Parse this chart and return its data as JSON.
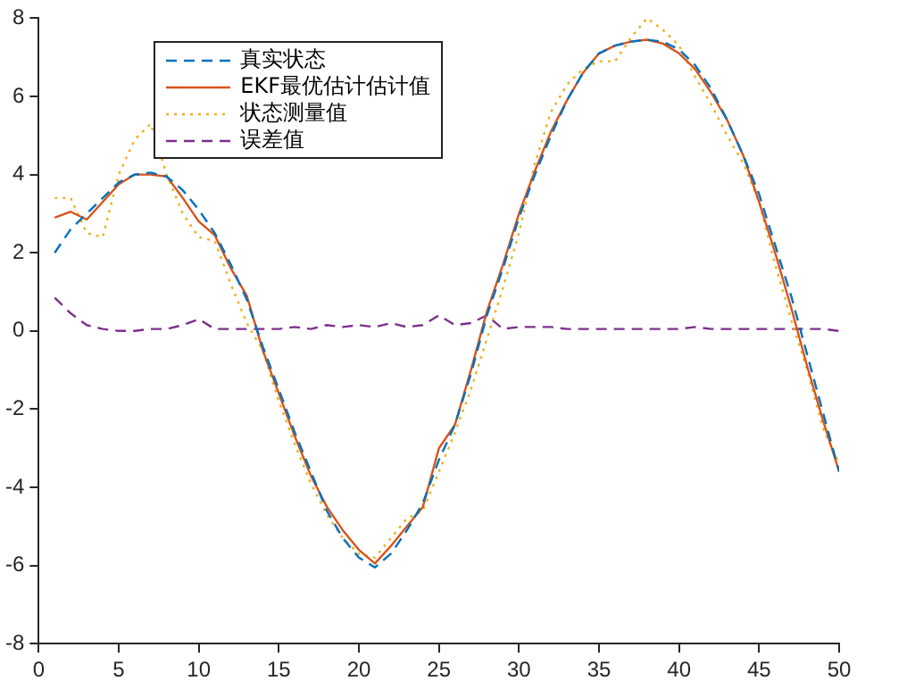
{
  "chart_data": {
    "type": "line",
    "x": [
      1,
      2,
      3,
      4,
      5,
      6,
      7,
      8,
      9,
      10,
      11,
      12,
      13,
      14,
      15,
      16,
      17,
      18,
      19,
      20,
      21,
      22,
      23,
      24,
      25,
      26,
      27,
      28,
      29,
      30,
      31,
      32,
      33,
      34,
      35,
      36,
      37,
      38,
      39,
      40,
      41,
      42,
      43,
      44,
      45,
      46,
      47,
      48,
      49,
      50
    ],
    "xlim": [
      0,
      50
    ],
    "xticks": [
      0,
      5,
      10,
      15,
      20,
      25,
      30,
      35,
      40,
      45,
      50
    ],
    "ylim": [
      -8,
      8
    ],
    "yticks": [
      -8,
      -6,
      -4,
      -2,
      0,
      2,
      4,
      6,
      8
    ],
    "grid": false,
    "legend": "top left",
    "marker": "none",
    "series": [
      {
        "name": "真实状态",
        "color": "#0072bd",
        "line_style": "dashed",
        "values": [
          2.0,
          2.6,
          3.0,
          3.4,
          3.8,
          4.0,
          4.05,
          3.95,
          3.6,
          3.1,
          2.5,
          1.7,
          0.8,
          -0.4,
          -1.5,
          -2.6,
          -3.6,
          -4.6,
          -5.3,
          -5.8,
          -6.05,
          -5.7,
          -5.1,
          -4.4,
          -3.3,
          -2.4,
          -1.1,
          0.4,
          1.6,
          2.9,
          4.0,
          5.0,
          5.9,
          6.6,
          7.1,
          7.3,
          7.4,
          7.45,
          7.4,
          7.2,
          6.8,
          6.2,
          5.4,
          4.5,
          3.5,
          2.2,
          0.9,
          -0.6,
          -2.1,
          -3.6
        ]
      },
      {
        "name": "EKF最优估计估计值",
        "color": "#d95319",
        "line_style": "solid",
        "values": [
          2.9,
          3.05,
          2.85,
          3.3,
          3.75,
          4.0,
          4.0,
          3.95,
          3.4,
          2.8,
          2.45,
          1.6,
          0.9,
          -0.5,
          -1.6,
          -2.7,
          -3.7,
          -4.5,
          -5.1,
          -5.6,
          -5.95,
          -5.5,
          -5.0,
          -4.5,
          -3.0,
          -2.4,
          -1.0,
          0.5,
          1.7,
          3.0,
          4.1,
          5.1,
          5.9,
          6.6,
          7.1,
          7.3,
          7.4,
          7.45,
          7.35,
          7.1,
          6.7,
          6.1,
          5.4,
          4.5,
          3.3,
          2.0,
          0.6,
          -0.9,
          -2.3,
          -3.6
        ]
      },
      {
        "name": "状态测量值",
        "color": "#edb120",
        "line_style": "dotted",
        "values": [
          3.4,
          3.4,
          2.5,
          2.4,
          4.0,
          4.9,
          5.3,
          4.0,
          3.0,
          2.4,
          2.3,
          1.2,
          0.2,
          -0.5,
          -1.8,
          -2.9,
          -3.9,
          -4.7,
          -5.3,
          -5.7,
          -5.8,
          -5.3,
          -4.8,
          -4.6,
          -3.6,
          -2.6,
          -1.5,
          -0.2,
          1.1,
          2.5,
          4.3,
          5.6,
          6.3,
          6.7,
          6.9,
          6.9,
          7.5,
          8.0,
          7.7,
          7.3,
          6.5,
          5.8,
          5.0,
          4.3,
          3.3,
          1.7,
          0.3,
          -1.0,
          -2.5,
          -3.4
        ]
      },
      {
        "name": "误差值",
        "color": "#7e2f8e",
        "line_style": "dashed",
        "values": [
          0.85,
          0.45,
          0.15,
          0.05,
          0.0,
          0.0,
          0.05,
          0.05,
          0.15,
          0.3,
          0.05,
          0.05,
          0.05,
          0.05,
          0.05,
          0.1,
          0.05,
          0.15,
          0.1,
          0.15,
          0.1,
          0.2,
          0.1,
          0.15,
          0.4,
          0.15,
          0.2,
          0.4,
          0.05,
          0.1,
          0.1,
          0.1,
          0.05,
          0.05,
          0.05,
          0.05,
          0.05,
          0.05,
          0.05,
          0.05,
          0.1,
          0.05,
          0.05,
          0.05,
          0.05,
          0.05,
          0.05,
          0.05,
          0.05,
          0.0
        ]
      }
    ]
  }
}
